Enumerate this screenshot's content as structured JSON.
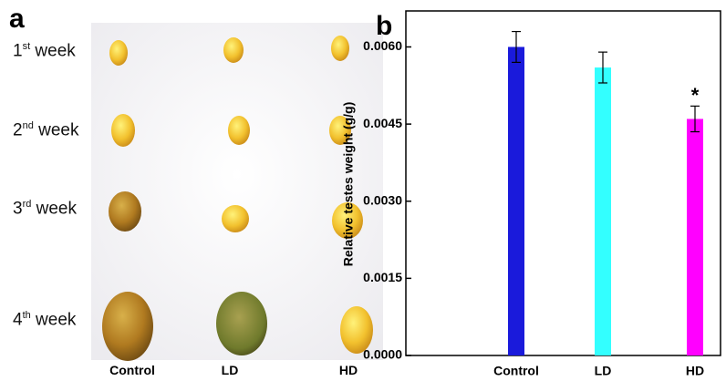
{
  "panel_a": {
    "label": "a",
    "rows": [
      {
        "number": "1",
        "suffix": "st",
        "text": "week"
      },
      {
        "number": "2",
        "suffix": "nd",
        "text": "week"
      },
      {
        "number": "3",
        "suffix": "rd",
        "text": "week"
      },
      {
        "number": "4",
        "suffix": "th",
        "text": "week"
      }
    ],
    "columns": [
      "Control",
      "LD",
      "HD"
    ]
  },
  "chart_data": {
    "type": "bar",
    "panel_label": "b",
    "ylabel": "Relative testes weight (g/g)",
    "categories": [
      "Control",
      "LD",
      "HD"
    ],
    "values": [
      0.006,
      0.0056,
      0.0046
    ],
    "errors": [
      0.0003,
      0.0003,
      0.00025
    ],
    "colors": [
      "#1a1adb",
      "#33ffff",
      "#ff00ff"
    ],
    "value_annotations": [
      null,
      null,
      "*"
    ],
    "ylim": [
      0,
      0.0067
    ],
    "yticks": [
      {
        "value": 0,
        "label": "0.0000"
      },
      {
        "value": 0.0015,
        "label": "0.0015"
      },
      {
        "value": 0.003,
        "label": "0.0030"
      },
      {
        "value": 0.0045,
        "label": "0.0045"
      },
      {
        "value": 0.006,
        "label": "0.0060"
      }
    ]
  }
}
